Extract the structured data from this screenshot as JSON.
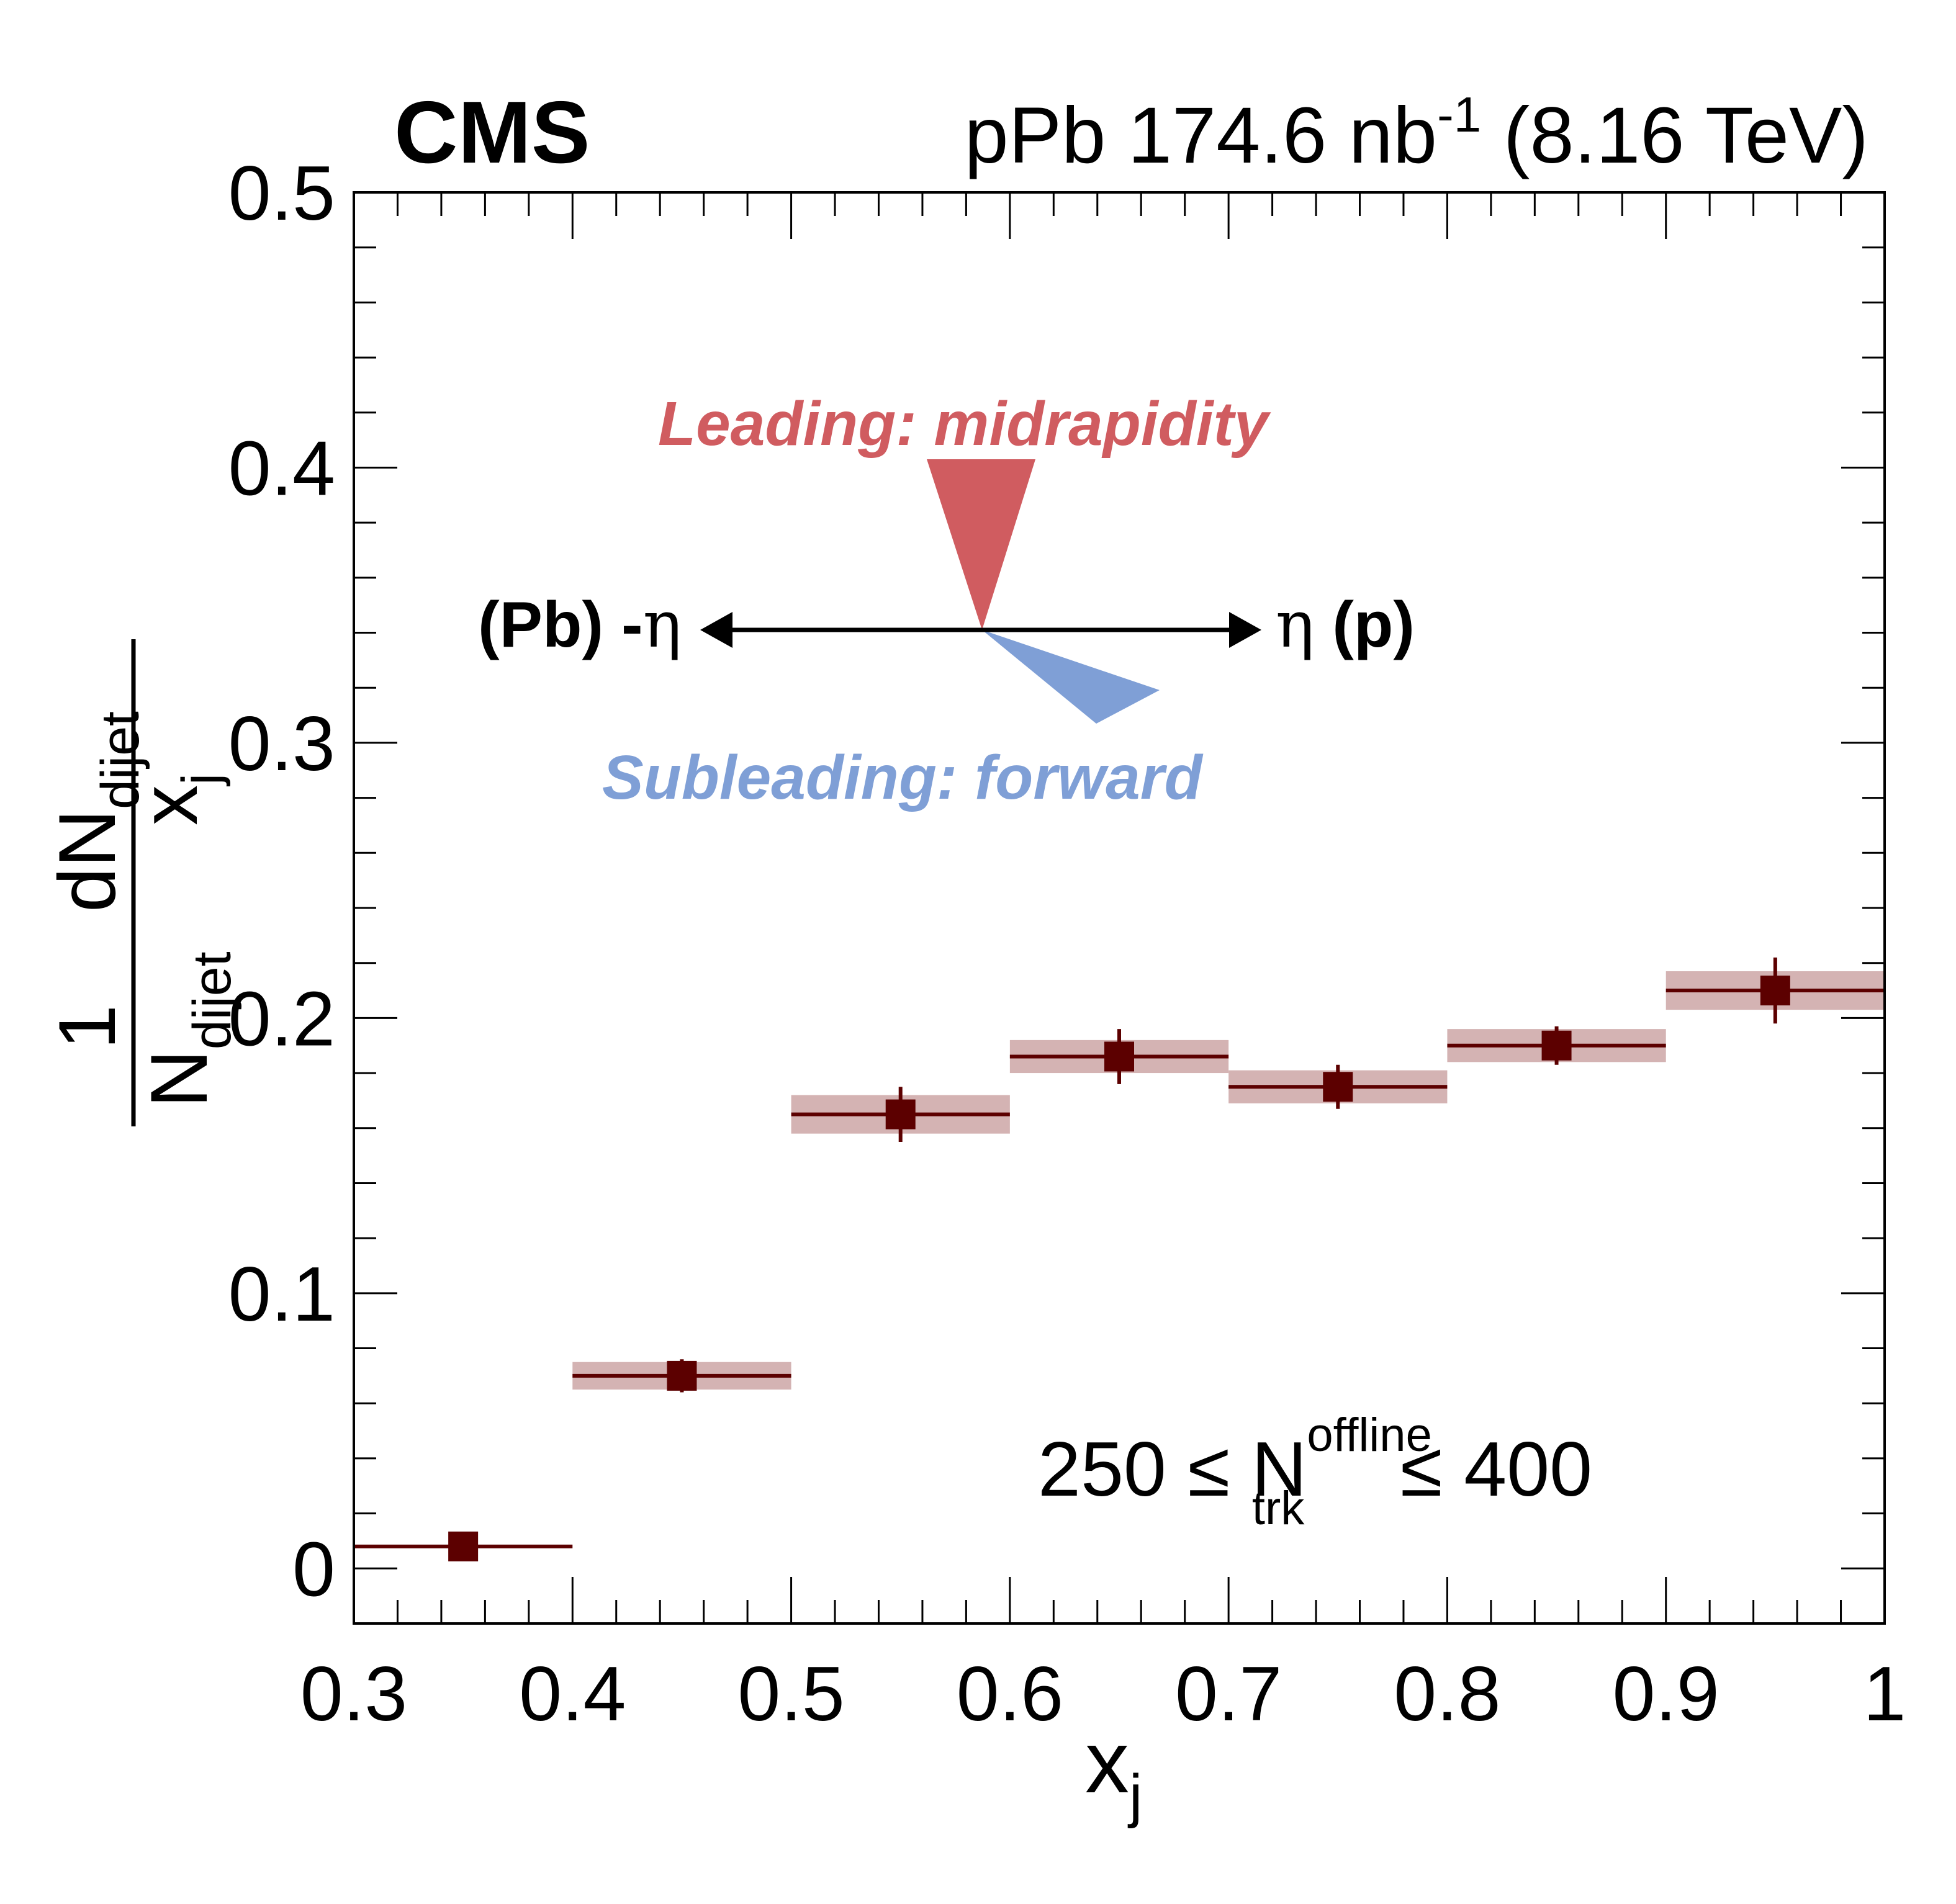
{
  "header": {
    "experiment": "CMS",
    "collision_prefix": "pPb 174.6 nb",
    "collision_sup": "-1",
    "collision_suffix": " (8.16 TeV)"
  },
  "diagram": {
    "leading_label": "Leading: midrapidity",
    "subleading_label": "Subleading: forward",
    "left_label_bold": "(Pb) -",
    "eta_symbol": "η",
    "right_label_bold": " (p)",
    "leading_color": "#d05c60",
    "subleading_color": "#7f9fd6"
  },
  "selection": {
    "prefix": "250 ≤ N",
    "sup": "offline",
    "sub": "trk",
    "suffix": " ≤ 400"
  },
  "axis_labels": {
    "x_main": "x",
    "x_sub": "j",
    "y_one": "1",
    "y_n": "N",
    "y_n_sub": "dijet",
    "y_dn": "dN",
    "y_dn_sub": "dijet",
    "y_x": "x",
    "y_x_sub": "j"
  },
  "chart_data": {
    "type": "scatter",
    "xlim": [
      0.3,
      1.0
    ],
    "ylim": [
      -0.02,
      0.5
    ],
    "x_ticks": [
      "0.3",
      "0.4",
      "0.5",
      "0.6",
      "0.7",
      "0.8",
      "0.9",
      "1"
    ],
    "y_ticks": [
      "0",
      "0.1",
      "0.2",
      "0.3",
      "0.4",
      "0.5"
    ],
    "grid": false,
    "colors": {
      "marker": "#5c0000",
      "syst_band": "#d4b3b3"
    },
    "points": [
      {
        "x_low": 0.3,
        "x_high": 0.4,
        "x": 0.35,
        "y": 0.008,
        "stat": 0.0015,
        "syst": null
      },
      {
        "x_low": 0.4,
        "x_high": 0.5,
        "x": 0.45,
        "y": 0.07,
        "stat": 0.006,
        "syst": 0.005
      },
      {
        "x_low": 0.5,
        "x_high": 0.6,
        "x": 0.55,
        "y": 0.165,
        "stat": 0.01,
        "syst": 0.007
      },
      {
        "x_low": 0.6,
        "x_high": 0.7,
        "x": 0.65,
        "y": 0.186,
        "stat": 0.01,
        "syst": 0.006
      },
      {
        "x_low": 0.7,
        "x_high": 0.8,
        "x": 0.75,
        "y": 0.175,
        "stat": 0.008,
        "syst": 0.006
      },
      {
        "x_low": 0.8,
        "x_high": 0.9,
        "x": 0.85,
        "y": 0.19,
        "stat": 0.007,
        "syst": 0.006
      },
      {
        "x_low": 0.9,
        "x_high": 1.0,
        "x": 0.95,
        "y": 0.21,
        "stat": 0.012,
        "syst": 0.007
      }
    ]
  }
}
